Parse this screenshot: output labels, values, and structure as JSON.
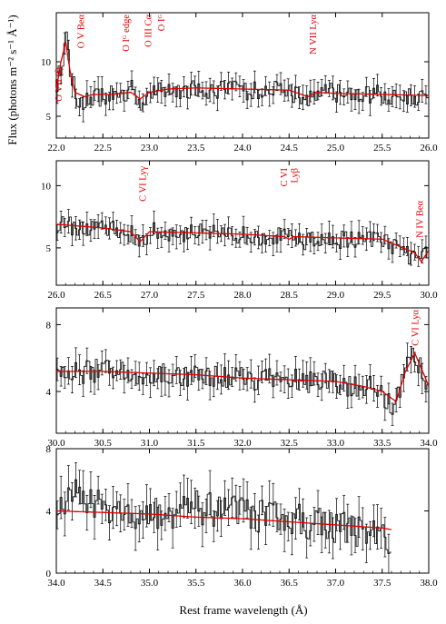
{
  "figure": {
    "ylabel": "Flux (photons m⁻² s⁻¹ Å⁻¹)",
    "xlabel": "Rest frame wavelength (Å)"
  },
  "colors": {
    "model": "#e00000",
    "data": "#000000",
    "annotation": "#e00000"
  },
  "chart_data": [
    {
      "type": "line",
      "xlim": [
        22.0,
        26.0
      ],
      "ylim": [
        3.0,
        14.5
      ],
      "xticks": [
        22.0,
        22.5,
        23.0,
        23.5,
        24.0,
        24.5,
        25.0,
        25.5,
        26.0
      ],
      "yticks": [
        5,
        10
      ],
      "noise": 0.9,
      "series": [
        {
          "role": "data",
          "x": [
            22.0,
            22.1,
            22.15,
            22.25,
            22.35,
            22.5,
            22.7,
            22.8,
            22.9,
            23.0,
            23.2,
            23.5,
            23.8,
            24.0,
            24.5,
            24.7,
            24.8,
            25.0,
            25.5,
            26.0
          ],
          "y": [
            8.0,
            12.0,
            8.5,
            6.0,
            6.5,
            6.8,
            7.0,
            7.5,
            6.2,
            7.0,
            7.4,
            7.5,
            7.5,
            7.4,
            7.3,
            6.4,
            7.2,
            7.2,
            7.0,
            6.8
          ]
        },
        {
          "role": "model",
          "x": [
            22.0,
            22.05,
            22.1,
            22.15,
            22.2,
            22.3,
            22.4,
            22.6,
            22.8,
            22.9,
            23.0,
            23.2,
            23.5,
            24.0,
            24.5,
            24.7,
            24.8,
            25.0,
            25.5,
            26.0
          ],
          "y": [
            7.5,
            10.0,
            11.8,
            9.0,
            7.2,
            6.8,
            7.0,
            7.0,
            7.2,
            6.6,
            7.2,
            7.5,
            7.6,
            7.5,
            7.4,
            6.8,
            7.2,
            7.1,
            7.0,
            6.9
          ]
        }
      ],
      "annotations": [
        {
          "x": 22.02,
          "text": "O VII (f)"
        },
        {
          "x": 22.26,
          "text": "O V Beα"
        },
        {
          "x": 22.74,
          "text": "O Iᴳ edge"
        },
        {
          "x": 22.98,
          "text": "O III Cα"
        },
        {
          "x": 23.12,
          "text": "O Iᴳ"
        },
        {
          "x": 24.75,
          "text": "N VII Lyα"
        }
      ]
    },
    {
      "type": "line",
      "xlim": [
        26.0,
        30.0
      ],
      "ylim": [
        2.0,
        12.0
      ],
      "xticks": [
        26.0,
        26.5,
        27.0,
        27.5,
        28.0,
        28.5,
        29.0,
        29.5,
        30.0
      ],
      "yticks": [
        5,
        10
      ],
      "noise": 0.75,
      "series": [
        {
          "role": "data",
          "x": [
            26.0,
            26.5,
            26.8,
            26.9,
            27.0,
            27.5,
            28.0,
            28.4,
            28.6,
            29.0,
            29.5,
            29.8,
            29.9,
            30.0
          ],
          "y": [
            6.8,
            6.6,
            6.1,
            5.2,
            6.3,
            6.2,
            6.0,
            5.9,
            5.5,
            5.7,
            5.6,
            4.2,
            3.8,
            5.0
          ]
        },
        {
          "role": "model",
          "x": [
            26.0,
            26.5,
            26.8,
            26.9,
            27.0,
            27.5,
            28.0,
            28.45,
            28.5,
            28.55,
            29.0,
            29.5,
            29.85,
            29.92,
            30.0
          ],
          "y": [
            6.9,
            6.6,
            6.3,
            5.5,
            6.3,
            6.2,
            6.1,
            5.9,
            5.7,
            5.9,
            5.8,
            5.7,
            4.6,
            3.9,
            4.8
          ]
        }
      ],
      "annotations": [
        {
          "x": 26.92,
          "text": "C VI Lyγ"
        },
        {
          "x": 28.44,
          "text": "C VI"
        },
        {
          "x": 28.55,
          "text": "Lyβ"
        },
        {
          "x": 29.9,
          "text": "N IV Beα"
        }
      ]
    },
    {
      "type": "line",
      "xlim": [
        30.0,
        34.0
      ],
      "ylim": [
        1.5,
        9.0
      ],
      "xticks": [
        30.0,
        30.5,
        31.0,
        31.5,
        32.0,
        32.5,
        33.0,
        33.5,
        34.0
      ],
      "yticks": [
        4,
        8
      ],
      "noise": 0.7,
      "series": [
        {
          "role": "data",
          "x": [
            30.0,
            30.5,
            31.0,
            31.5,
            32.0,
            32.5,
            33.0,
            33.4,
            33.6,
            33.7,
            33.8,
            33.9,
            34.0
          ],
          "y": [
            5.0,
            5.3,
            5.0,
            5.0,
            4.8,
            4.7,
            4.5,
            4.2,
            3.0,
            4.5,
            6.3,
            5.5,
            4.2
          ]
        },
        {
          "role": "model",
          "x": [
            30.0,
            30.5,
            31.0,
            31.5,
            32.0,
            32.5,
            33.0,
            33.3,
            33.5,
            33.65,
            33.75,
            33.85,
            33.95,
            34.0
          ],
          "y": [
            5.2,
            5.2,
            5.1,
            5.0,
            4.8,
            4.7,
            4.6,
            4.3,
            4.0,
            3.4,
            5.2,
            6.3,
            5.0,
            4.3
          ]
        }
      ],
      "annotations": [
        {
          "x": 33.85,
          "text": "C VI Lyα"
        }
      ]
    },
    {
      "type": "line",
      "xlim": [
        34.0,
        38.0
      ],
      "ylim": [
        0,
        8
      ],
      "xticks": [
        34.0,
        34.5,
        35.0,
        35.5,
        36.0,
        36.5,
        37.0,
        37.5,
        38.0
      ],
      "yticks": [
        0,
        4,
        8
      ],
      "noise": 1.1,
      "series": [
        {
          "role": "data",
          "x": [
            34.0,
            34.2,
            34.5,
            35.0,
            35.5,
            36.0,
            36.5,
            37.0,
            37.5,
            37.6
          ],
          "y": [
            4.0,
            5.5,
            4.0,
            3.8,
            4.2,
            3.8,
            3.5,
            3.0,
            2.5,
            1.0
          ]
        },
        {
          "role": "model",
          "x": [
            34.0,
            34.5,
            35.0,
            35.5,
            36.0,
            36.5,
            37.0,
            37.5,
            37.6
          ],
          "y": [
            4.0,
            3.9,
            3.8,
            3.6,
            3.5,
            3.3,
            3.1,
            2.9,
            2.8
          ]
        }
      ],
      "annotations": []
    }
  ]
}
